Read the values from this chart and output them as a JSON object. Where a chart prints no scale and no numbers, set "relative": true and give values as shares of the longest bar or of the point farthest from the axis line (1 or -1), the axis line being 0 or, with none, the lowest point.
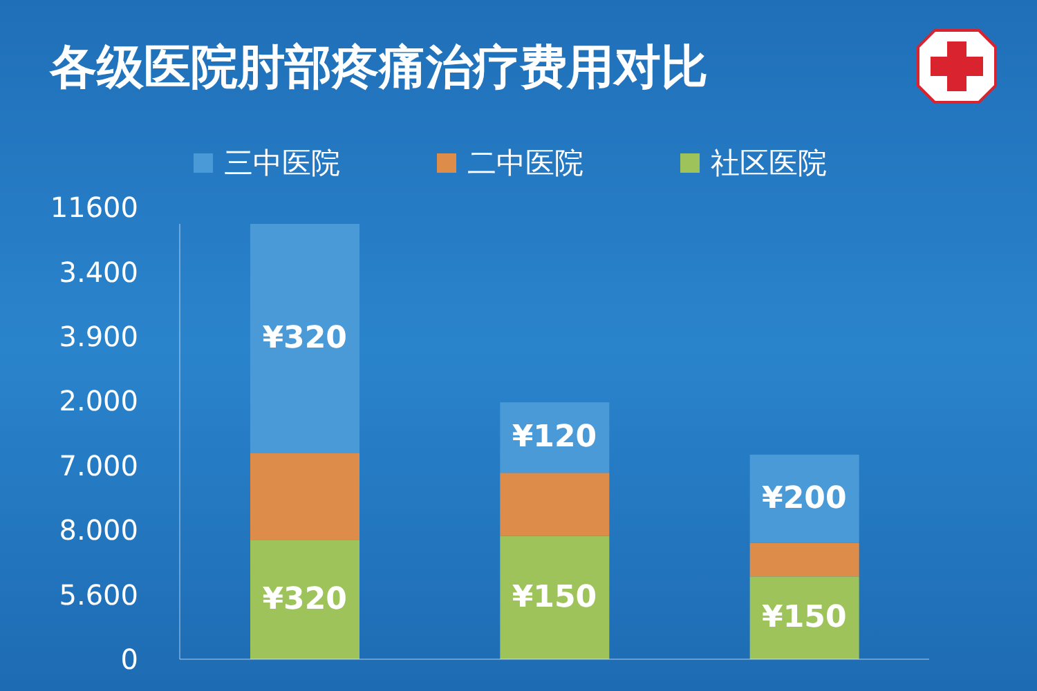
{
  "chart_data": {
    "type": "bar",
    "title": "各级医院肘部疼痛治疗费用对比",
    "stacked": true,
    "relative": true,
    "categories": [
      null,
      null,
      null
    ],
    "series": [
      {
        "name": "社区医院",
        "color": "#9dc35a",
        "values": [
          0.273,
          0.283,
          0.19
        ]
      },
      {
        "name": "二中医院",
        "color": "#de8c4a",
        "values": [
          0.2,
          0.145,
          0.077
        ]
      },
      {
        "name": "三中医院",
        "color": "#4a9ad8",
        "values": [
          0.527,
          0.162,
          0.203
        ]
      }
    ],
    "annotations": [
      "0",
      "5.600",
      "8.000",
      "7.000",
      "2.000",
      "3.900",
      "3.400",
      "11600",
      "¥320",
      "¥320",
      "¥150",
      "¥120",
      "¥150",
      "¥200"
    ],
    "legend": "top"
  }
}
